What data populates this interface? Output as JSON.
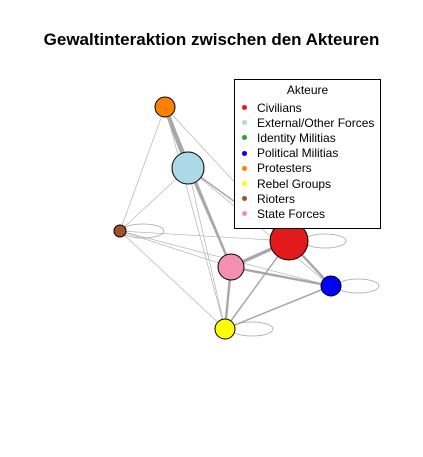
{
  "title": "Gewaltinteraktion zwischen den Akteuren",
  "legend": {
    "title": "Akteure",
    "items": [
      {
        "label": "Civilians",
        "color": "#e31a1c"
      },
      {
        "label": "External/Other Forces",
        "color": "#add8e6"
      },
      {
        "label": "Identity Militias",
        "color": "#33a02c"
      },
      {
        "label": "Political Militias",
        "color": "#0000ff"
      },
      {
        "label": "Protesters",
        "color": "#ff7f00"
      },
      {
        "label": "Rebel Groups",
        "color": "#ffff00"
      },
      {
        "label": "Rioters",
        "color": "#a0522d"
      },
      {
        "label": "State Forces",
        "color": "#f48fb1"
      }
    ]
  },
  "network": {
    "edge_color": "#a8a8a8",
    "nodes": [
      {
        "id": "civilians",
        "label": "Civilians",
        "color": "#e31a1c",
        "size": 3
      },
      {
        "id": "external",
        "label": "External/Other Forces",
        "color": "#add8e6",
        "size": 3
      },
      {
        "id": "identity",
        "label": "Identity Militias",
        "color": "#33a02c",
        "size": 1
      },
      {
        "id": "political",
        "label": "Political Militias",
        "color": "#0000ff",
        "size": 2
      },
      {
        "id": "protesters",
        "label": "Protesters",
        "color": "#ff7f00",
        "size": 2
      },
      {
        "id": "rebel",
        "label": "Rebel Groups",
        "color": "#ffff00",
        "size": 2
      },
      {
        "id": "rioters",
        "label": "Rioters",
        "color": "#a0522d",
        "size": 1
      },
      {
        "id": "state",
        "label": "State Forces",
        "color": "#f48fb1",
        "size": 3
      }
    ],
    "edges": [
      {
        "source": "protesters",
        "target": "external",
        "weight": 5
      },
      {
        "source": "protesters",
        "target": "state",
        "weight": 3
      },
      {
        "source": "protesters",
        "target": "civilians",
        "weight": 1
      },
      {
        "source": "protesters",
        "target": "rioters",
        "weight": 1
      },
      {
        "source": "protesters",
        "target": "rebel",
        "weight": 1
      },
      {
        "source": "external",
        "target": "rioters",
        "weight": 1
      },
      {
        "source": "external",
        "target": "state",
        "weight": 2
      },
      {
        "source": "external",
        "target": "civilians",
        "weight": 2
      },
      {
        "source": "external",
        "target": "rebel",
        "weight": 1
      },
      {
        "source": "external",
        "target": "political",
        "weight": 1
      },
      {
        "source": "rioters",
        "target": "civilians",
        "weight": 1
      },
      {
        "source": "rioters",
        "target": "state",
        "weight": 1
      },
      {
        "source": "rioters",
        "target": "political",
        "weight": 1
      },
      {
        "source": "rioters",
        "target": "rebel",
        "weight": 1
      },
      {
        "source": "state",
        "target": "civilians",
        "weight": 4
      },
      {
        "source": "state",
        "target": "political",
        "weight": 3
      },
      {
        "source": "state",
        "target": "rebel",
        "weight": 3
      },
      {
        "source": "civilians",
        "target": "political",
        "weight": 3
      },
      {
        "source": "civilians",
        "target": "rebel",
        "weight": 2
      },
      {
        "source": "political",
        "target": "rebel",
        "weight": 2
      }
    ],
    "self_loops": [
      "rioters",
      "political",
      "rebel",
      "civilians"
    ]
  }
}
